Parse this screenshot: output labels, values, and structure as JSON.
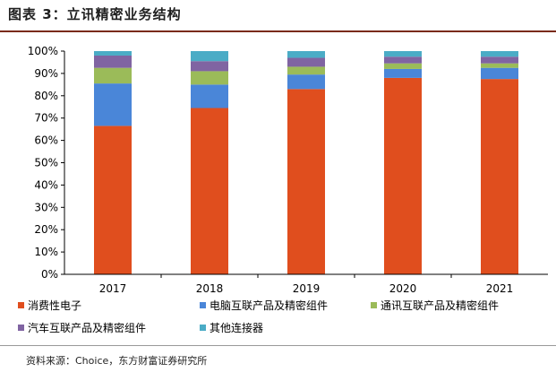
{
  "header": {
    "title": "图表 3：立讯精密业务结构"
  },
  "footer": {
    "source": "资料来源：Choice，东方财富证券研究所"
  },
  "chart_data": {
    "type": "bar",
    "stacked": true,
    "title": "立讯精密业务结构",
    "categories": [
      "2017",
      "2018",
      "2019",
      "2020",
      "2021"
    ],
    "series": [
      {
        "name": "消费性电子",
        "color": "#e04e1e",
        "values": [
          66.5,
          74.5,
          83,
          88,
          87.5
        ]
      },
      {
        "name": "电脑互联产品及精密组件",
        "color": "#4a86d8",
        "values": [
          19,
          10.5,
          6.5,
          4,
          5
        ]
      },
      {
        "name": "通讯互联产品及精密组件",
        "color": "#9bbb59",
        "values": [
          7,
          6,
          3.5,
          2.5,
          2
        ]
      },
      {
        "name": "汽车互联产品及精密组件",
        "color": "#8064a2",
        "values": [
          5.5,
          4.5,
          4,
          3,
          3
        ]
      },
      {
        "name": "其他连接器",
        "color": "#4bacc6",
        "values": [
          2,
          4.5,
          3,
          2.5,
          2.5
        ]
      }
    ],
    "y_ticks": [
      "0%",
      "10%",
      "20%",
      "30%",
      "40%",
      "50%",
      "60%",
      "70%",
      "80%",
      "90%",
      "100%"
    ],
    "ylim": [
      0,
      100
    ],
    "grid": false,
    "legend_position": "bottom"
  }
}
